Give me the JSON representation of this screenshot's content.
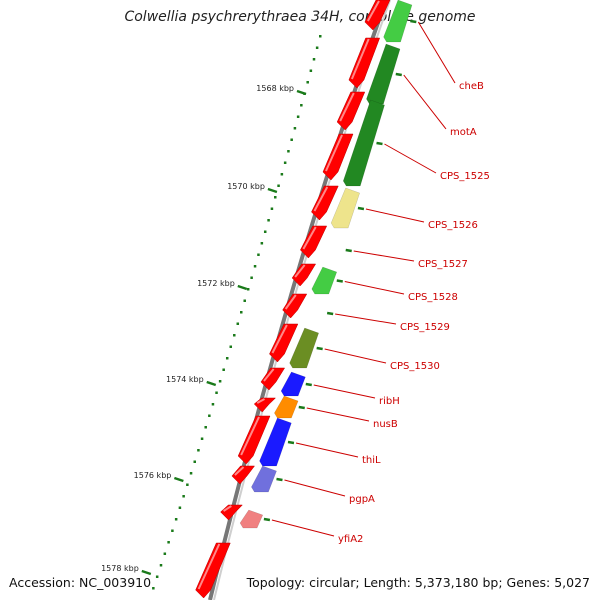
{
  "title": "Colwellia psychrerythraea 34H, complete genome",
  "accession": "Accession: NC_003910",
  "topology": "Topology: circular; Length: 5,373,180 bp; Genes: 5,027",
  "colors": {
    "forward_cds": "#ff0000",
    "backbone": "#777777",
    "label_text": "#cc0000",
    "tick": "#1a7a1a"
  },
  "kbp_ticks": [
    "1568 kbp",
    "1570 kbp",
    "1572 kbp",
    "1574 kbp",
    "1576 kbp",
    "1578 kbp"
  ],
  "gene_labels": [
    {
      "name": "cheB",
      "color": "#44cc44"
    },
    {
      "name": "motA",
      "color": "#228822"
    },
    {
      "name": "CPS_1525",
      "color": "#228822"
    },
    {
      "name": "CPS_1526",
      "color": "#eee48c"
    },
    {
      "name": "CPS_1527",
      "color": "#ffffff"
    },
    {
      "name": "CPS_1528",
      "color": "#44cc44"
    },
    {
      "name": "CPS_1529",
      "color": "#ffffff"
    },
    {
      "name": "CPS_1530",
      "color": "#6b8e23"
    },
    {
      "name": "ribH",
      "color": "#1a1aff"
    },
    {
      "name": "nusB",
      "color": "#ff8c00"
    },
    {
      "name": "thiL",
      "color": "#1a1aff"
    },
    {
      "name": "pgpA",
      "color": "#7070dd"
    },
    {
      "name": "yfiA2",
      "color": "#f08080"
    }
  ]
}
